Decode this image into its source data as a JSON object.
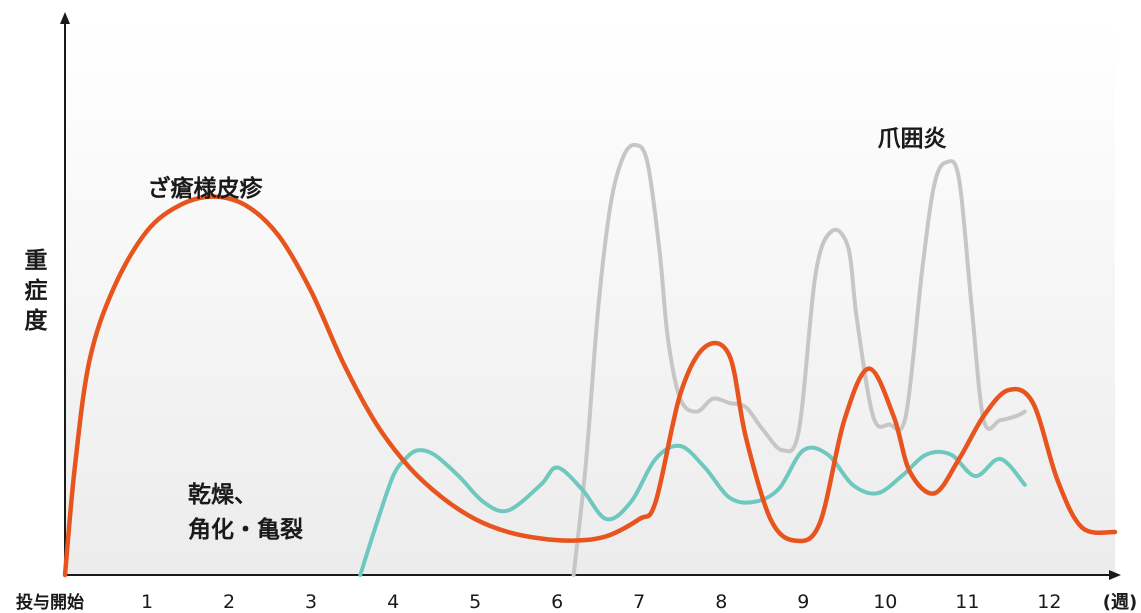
{
  "chart_data": {
    "type": "line",
    "ylabel": "重症度",
    "x_start_label": "投与開始",
    "x_unit_label": "(週)",
    "x_ticks": [
      "1",
      "2",
      "3",
      "4",
      "5",
      "6",
      "7",
      "8",
      "9",
      "10",
      "11",
      "12"
    ],
    "x_range": [
      0,
      12.8
    ],
    "y_range": [
      0,
      100
    ],
    "grid": false,
    "legend": "none",
    "series": [
      {
        "name": "ざ瘡様皮疹",
        "color": "#e8541e",
        "x": [
          0,
          0.12,
          0.3,
          0.6,
          1.0,
          1.4,
          1.8,
          2.2,
          2.6,
          3.0,
          3.4,
          3.8,
          4.2,
          4.6,
          5.0,
          5.4,
          5.8,
          6.2,
          6.6,
          7.0,
          7.2,
          7.5,
          7.8,
          8.1,
          8.3,
          8.6,
          8.9,
          9.2,
          9.5,
          9.8,
          10.1,
          10.3,
          10.6,
          10.9,
          11.2,
          11.5,
          11.8,
          12.1,
          12.4,
          12.8
        ],
        "y": [
          0,
          25,
          50,
          67,
          80,
          86,
          88,
          86,
          79,
          66,
          49,
          35,
          25,
          18,
          13,
          10,
          8.5,
          8,
          9,
          13,
          17,
          42,
          53,
          51,
          32,
          13,
          8,
          12,
          36,
          48,
          37,
          24,
          19,
          27,
          37,
          43,
          40,
          22,
          11,
          10
        ]
      },
      {
        "name": "乾燥、角化・亀裂",
        "color": "#6ec8c0",
        "x": [
          3.6,
          3.8,
          4.0,
          4.15,
          4.3,
          4.5,
          4.8,
          5.1,
          5.4,
          5.8,
          6.0,
          6.3,
          6.6,
          6.9,
          7.2,
          7.5,
          7.8,
          8.1,
          8.4,
          8.7,
          9.0,
          9.3,
          9.6,
          9.9,
          10.2,
          10.5,
          10.8,
          11.1,
          11.4,
          11.7
        ],
        "y": [
          0,
          12,
          23,
          27,
          29,
          28,
          23,
          17,
          15,
          21,
          25,
          20,
          13,
          17,
          27,
          30,
          25,
          18,
          17,
          20,
          29,
          28,
          21,
          19,
          23,
          28,
          28,
          23,
          27,
          21
        ]
      },
      {
        "name": "爪囲炎",
        "color": "#c6c6c6",
        "x": [
          6.2,
          6.35,
          6.5,
          6.65,
          6.8,
          6.95,
          7.1,
          7.25,
          7.35,
          7.5,
          7.7,
          7.9,
          8.1,
          8.3,
          8.5,
          8.75,
          8.95,
          9.15,
          9.35,
          9.55,
          9.65,
          9.85,
          10.05,
          10.25,
          10.45,
          10.6,
          10.75,
          10.9,
          11.05,
          11.2,
          11.4,
          11.6,
          11.7
        ],
        "y": [
          0,
          26,
          62,
          86,
          97,
          100,
          96,
          75,
          55,
          41,
          38,
          41,
          40,
          39,
          34,
          29,
          34,
          70,
          80,
          76,
          60,
          37,
          35,
          37,
          71,
          91,
          96,
          92,
          63,
          36,
          36,
          37,
          38
        ]
      }
    ],
    "series_labels": {
      "acne": "ざ瘡様皮疹",
      "dry_line1": "乾燥、",
      "dry_line2": "角化・亀裂",
      "paronychia": "爪囲炎"
    }
  }
}
